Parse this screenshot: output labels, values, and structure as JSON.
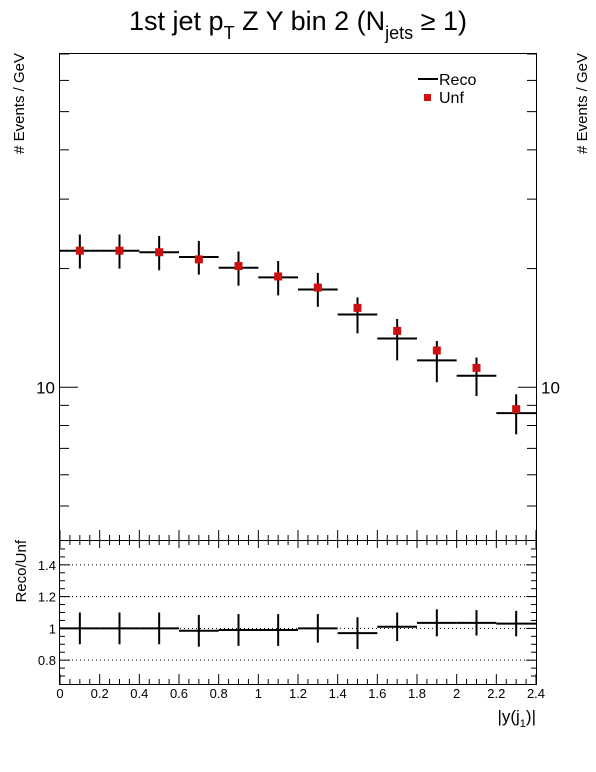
{
  "chart_data": [
    {
      "type": "scatter",
      "panel": "main",
      "title": {
        "part1": "1st jet p",
        "sub1": "T",
        "part2": " Z Y bin 2 (N",
        "sub2": "jets",
        "part3": " ≥ 1)"
      },
      "ylabel": "# Events / GeV",
      "ylabel_right": "# Events / GeV",
      "y_scale": "log",
      "ylim": [
        4.1,
        70
      ],
      "y_tick_labels": [
        {
          "value": 10,
          "label": "10"
        }
      ],
      "x_bin_edges": [
        0,
        0.2,
        0.4,
        0.6,
        0.8,
        1.0,
        1.2,
        1.4,
        1.6,
        1.8,
        2.0,
        2.2,
        2.4
      ],
      "legend": {
        "position": "top-right",
        "entries": [
          "Reco",
          "Unf"
        ]
      },
      "series": [
        {
          "name": "Reco",
          "style": "horizontal-bar-with-errors",
          "values": [
            22.2,
            22.2,
            22.0,
            21.4,
            20.1,
            19.0,
            17.7,
            15.3,
            13.3,
            11.7,
            10.7,
            8.6
          ],
          "err_low": [
            2.2,
            2.2,
            2.2,
            2.1,
            2.0,
            1.9,
            1.7,
            1.6,
            1.6,
            1.4,
            1.2,
            1.0
          ],
          "err_high": [
            2.2,
            2.2,
            2.2,
            2.1,
            2.0,
            1.9,
            1.8,
            1.6,
            1.6,
            1.4,
            1.2,
            1.0
          ]
        },
        {
          "name": "Unf",
          "style": "marker",
          "values": [
            22.2,
            22.2,
            22.0,
            21.1,
            20.3,
            19.1,
            17.9,
            15.9,
            13.9,
            12.4,
            11.2,
            8.8
          ]
        }
      ]
    },
    {
      "type": "scatter",
      "panel": "ratio",
      "xlabel": "|y(j_1)|",
      "xlabel_parts": {
        "main": "|y(j",
        "sub": "1",
        "end": ")|"
      },
      "ylabel": "Reco/Unf",
      "xlim": [
        0,
        2.4
      ],
      "ylim": [
        0.65,
        1.55
      ],
      "x_ticks": [
        "0",
        "0.2",
        "0.4",
        "0.6",
        "0.8",
        "1",
        "1.2",
        "1.4",
        "1.6",
        "1.8",
        "2",
        "2.2",
        "2.4"
      ],
      "y_ticks": [
        {
          "value": 0.8,
          "label": "0.8"
        },
        {
          "value": 1.0,
          "label": "1"
        },
        {
          "value": 1.2,
          "label": "1.2"
        },
        {
          "value": 1.4,
          "label": "1.4"
        }
      ],
      "grid": "horizontal dotted",
      "x_bin_edges": [
        0,
        0.2,
        0.4,
        0.6,
        0.8,
        1.0,
        1.2,
        1.4,
        1.6,
        1.8,
        2.0,
        2.2,
        2.4
      ],
      "series": [
        {
          "name": "Reco/Unf",
          "values": [
            1.0,
            1.0,
            1.0,
            0.985,
            0.99,
            0.99,
            1.0,
            0.97,
            1.01,
            1.035,
            1.035,
            1.03
          ],
          "errors": [
            0.1,
            0.1,
            0.1,
            0.1,
            0.1,
            0.1,
            0.09,
            0.1,
            0.09,
            0.085,
            0.08,
            0.08
          ]
        }
      ]
    }
  ]
}
